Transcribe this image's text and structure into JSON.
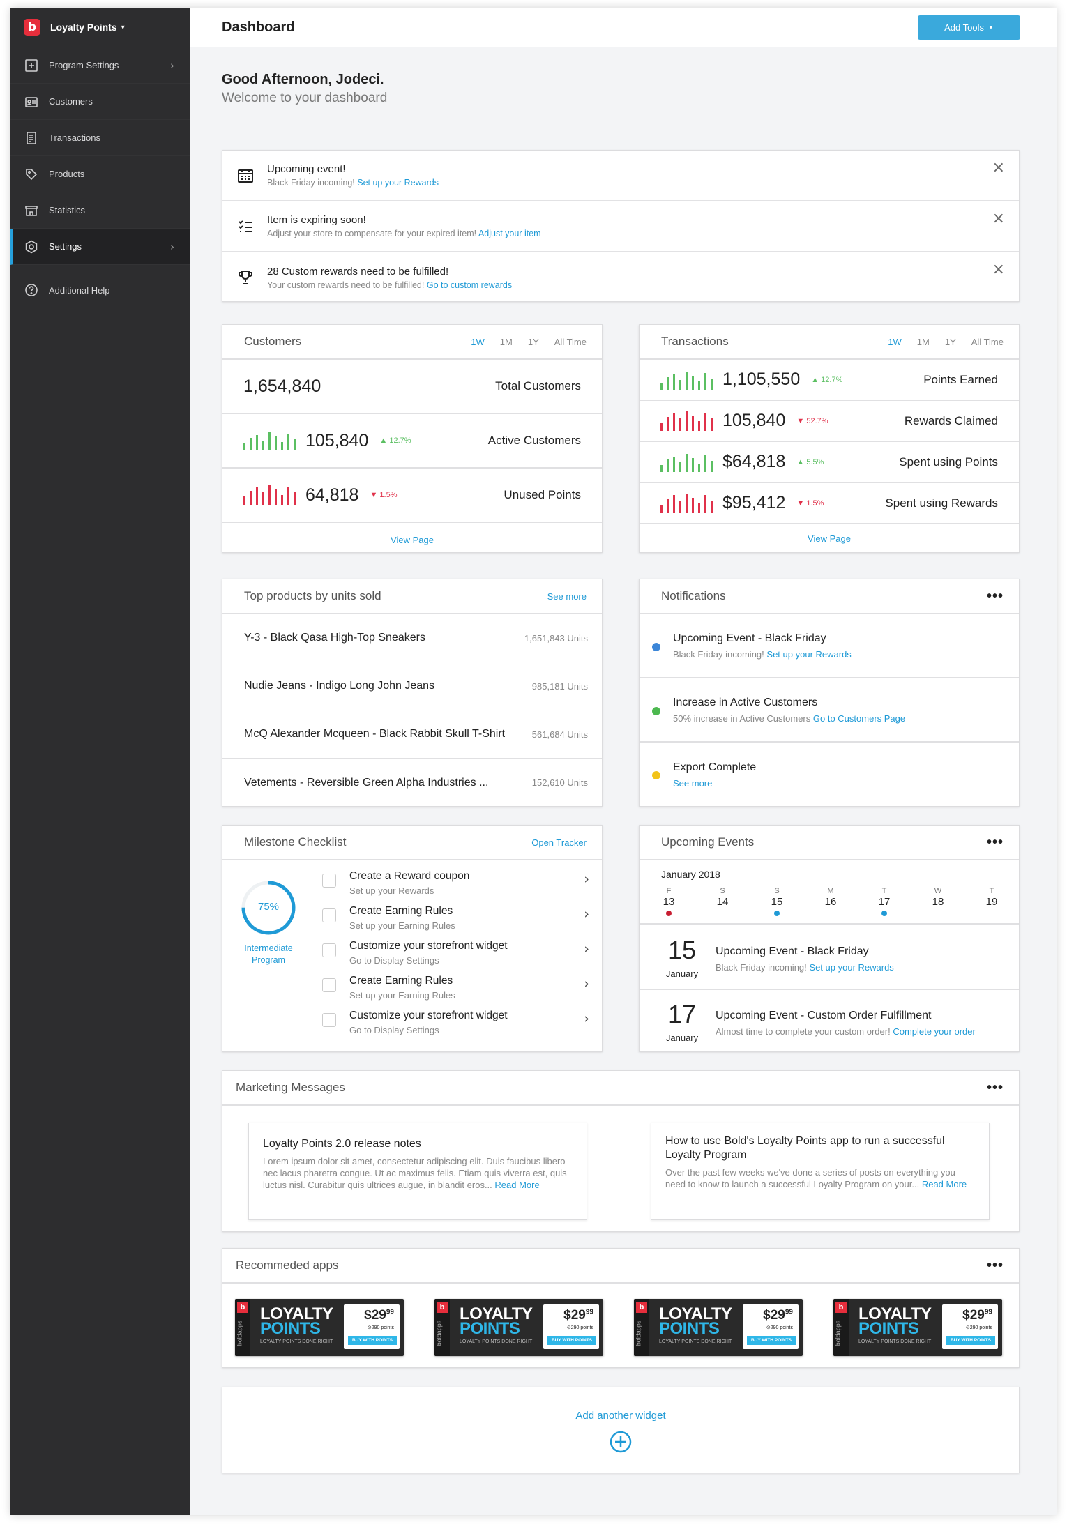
{
  "sidebar": {
    "brand": "Loyalty Points",
    "items": [
      {
        "label": "Program Settings",
        "icon": "plus-square-icon",
        "chevron": true
      },
      {
        "label": "Customers",
        "icon": "id-card-icon",
        "chevron": false
      },
      {
        "label": "Transactions",
        "icon": "receipt-icon",
        "chevron": false
      },
      {
        "label": "Products",
        "icon": "tag-icon",
        "chevron": false
      },
      {
        "label": "Statistics",
        "icon": "storefront-icon",
        "chevron": false
      },
      {
        "label": "Settings",
        "icon": "gear-icon",
        "chevron": true,
        "active": true
      },
      {
        "label": "Additional Help",
        "icon": "help-circle-icon",
        "chevron": false
      }
    ]
  },
  "header": {
    "title": "Dashboard",
    "add_tools": "Add Tools"
  },
  "greeting": {
    "title": "Good Afternoon, Jodeci.",
    "subtitle": "Welcome to your dashboard"
  },
  "alerts": [
    {
      "icon": "calendar-icon",
      "title": "Upcoming event!",
      "text": "Black Friday incoming!",
      "link": "Set up your Rewards"
    },
    {
      "icon": "checklist-icon",
      "title": "Item is expiring soon!",
      "text": "Adjust your store to compensate for your expired item!",
      "link": "Adjust your item"
    },
    {
      "icon": "trophy-icon",
      "title": "28 Custom rewards need to be fulfilled!",
      "text": "Your custom rewards need to be fulfilled!",
      "link": "Go to custom rewards"
    }
  ],
  "ranges": [
    "1W",
    "1M",
    "1Y",
    "All Time"
  ],
  "customers": {
    "title": "Customers",
    "rows": [
      {
        "value": "1,654,840",
        "label": "Total Customers",
        "pct": "",
        "trend": "none"
      },
      {
        "value": "105,840",
        "label": "Active Customers",
        "pct": "12.7%",
        "trend": "up"
      },
      {
        "value": "64,818",
        "label": "Unused Points",
        "pct": "1.5%",
        "trend": "down"
      }
    ],
    "view": "View Page"
  },
  "transactions": {
    "title": "Transactions",
    "rows": [
      {
        "value": "1,105,550",
        "label": "Points Earned",
        "pct": "12.7%",
        "trend": "up"
      },
      {
        "value": "105,840",
        "label": "Rewards Claimed",
        "pct": "52.7%",
        "trend": "down"
      },
      {
        "value": "$64,818",
        "label": "Spent using Points",
        "pct": "5.5%",
        "trend": "up"
      },
      {
        "value": "$95,412",
        "label": "Spent using Rewards",
        "pct": "1.5%",
        "trend": "down"
      }
    ],
    "view": "View Page"
  },
  "colors": {
    "up": "#5bbf62",
    "down": "#e0314a",
    "accent": "#1f9ad6",
    "blue_dot": "#3b86d8",
    "green_dot": "#4cb84f",
    "yellow_dot": "#f2c318"
  },
  "top_products": {
    "title": "Top products by units sold",
    "link": "See more",
    "items": [
      {
        "name": "Y-3 - Black Qasa High-Top Sneakers",
        "units": "1,651,843 Units"
      },
      {
        "name": "Nudie Jeans - Indigo Long John Jeans",
        "units": "985,181 Units"
      },
      {
        "name": "McQ Alexander Mcqueen - Black Rabbit Skull T-Shirt",
        "units": "561,684 Units"
      },
      {
        "name": "Vetements - Reversible Green Alpha Industries ...",
        "units": "152,610 Units"
      }
    ]
  },
  "notifications": {
    "title": "Notifications",
    "items": [
      {
        "title": "Upcoming Event - Black Friday",
        "text": "Black Friday incoming!",
        "link": "Set up your Rewards",
        "dot": "blue"
      },
      {
        "title": "Increase in Active Customers",
        "text": "50% increase in Active Customers",
        "link": "Go to Customers Page",
        "dot": "green"
      },
      {
        "title": "Export Complete",
        "text": "",
        "link": "See more",
        "dot": "yellow"
      }
    ]
  },
  "milestones": {
    "title": "Milestone Checklist",
    "link": "Open Tracker",
    "progress_pct": 75,
    "progress_label": "75%",
    "program_line1": "Intermediate",
    "program_line2": "Program",
    "items": [
      {
        "title": "Create a Reward coupon",
        "sub": "Set up your Rewards"
      },
      {
        "title": "Create Earning Rules",
        "sub": "Set up your Earning Rules"
      },
      {
        "title": "Customize your storefront widget",
        "sub": "Go to Display Settings"
      },
      {
        "title": "Create Earning Rules",
        "sub": "Set up your Earning Rules"
      },
      {
        "title": "Customize your storefront widget",
        "sub": "Go to Display Settings"
      }
    ]
  },
  "upcoming_events": {
    "title": "Upcoming Events",
    "month": "January 2018",
    "days": [
      {
        "letter": "F",
        "num": "13",
        "dot": "red"
      },
      {
        "letter": "S",
        "num": "14",
        "dot": ""
      },
      {
        "letter": "S",
        "num": "15",
        "dot": "blue"
      },
      {
        "letter": "M",
        "num": "16",
        "dot": ""
      },
      {
        "letter": "T",
        "num": "17",
        "dot": "blue"
      },
      {
        "letter": "W",
        "num": "18",
        "dot": ""
      },
      {
        "letter": "T",
        "num": "19",
        "dot": ""
      }
    ],
    "events": [
      {
        "day": "15",
        "month": "January",
        "title": "Upcoming Event - Black Friday",
        "text": "Black Friday incoming!",
        "link": "Set up your Rewards"
      },
      {
        "day": "17",
        "month": "January",
        "title": "Upcoming Event - Custom Order Fulfillment",
        "text": "Almost time to complete your custom order!",
        "link": "Complete your order"
      }
    ]
  },
  "marketing": {
    "title": "Marketing Messages",
    "items": [
      {
        "title": "Loyalty Points 2.0 release notes",
        "text": "Lorem ipsum dolor sit amet, consectetur adipiscing elit. Duis faucibus libero nec lacus pharetra congue. Ut ac maximus felis. Etiam quis viverra est, quis luctus nisl. Curabitur quis ultrices augue, in blandit eros...",
        "link": "Read More"
      },
      {
        "title": "How to use Bold's Loyalty Points app to run a successful Loyalty Program",
        "text": "Over the past few weeks we've done a series of posts on everything you need to know to launch a successful Loyalty Program on your...",
        "link": "Read More"
      }
    ]
  },
  "recommended": {
    "title": "Recommeded apps",
    "banner": {
      "brand_vertical": "boldapps",
      "line1": "LOYALTY",
      "line2": "POINTS",
      "tagline": "LOYALTY POINTS DONE RIGHT",
      "price": "$29",
      "price_cents": "99",
      "points": "⊙290 points",
      "buy": "BUY WITH POINTS"
    },
    "count": 4
  },
  "add_widget": {
    "label": "Add another widget"
  }
}
